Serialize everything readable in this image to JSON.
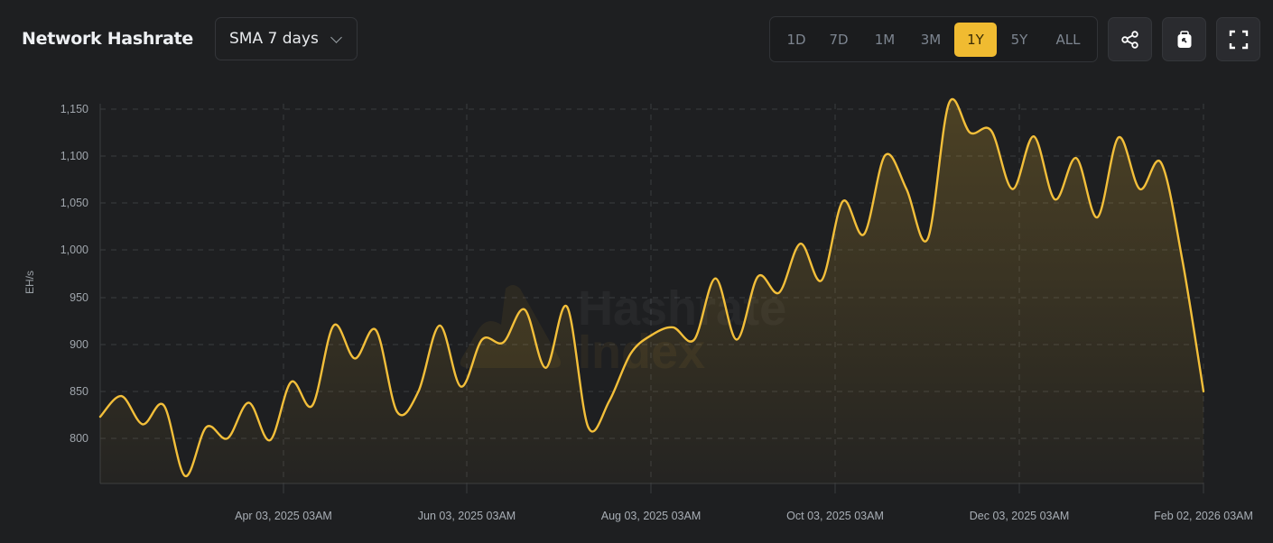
{
  "header": {
    "title": "Network Hashrate",
    "smoothing": {
      "selected": "SMA 7 days"
    },
    "ranges": [
      {
        "label": "1D",
        "active": false
      },
      {
        "label": "7D",
        "active": false
      },
      {
        "label": "1M",
        "active": false
      },
      {
        "label": "3M",
        "active": false
      },
      {
        "label": "1Y",
        "active": true
      },
      {
        "label": "5Y",
        "active": false
      },
      {
        "label": "ALL",
        "active": false
      }
    ],
    "icons": [
      "share-icon",
      "clipboard-icon",
      "fullscreen-icon"
    ]
  },
  "colors": {
    "accent": "#f0bb31",
    "line": "#f3bf3a",
    "background": "#1e1f21",
    "grid": "#3a3c40"
  },
  "watermark": {
    "line1": "Hashrate",
    "line2": "Index"
  },
  "chart_data": {
    "type": "area",
    "title": "Network Hashrate",
    "series_name": "SMA 7 days",
    "ylabel": "EH/s",
    "xlabel": "",
    "yticks": [
      "1,150",
      "1,100",
      "1,050",
      "1,000",
      "950",
      "900",
      "850",
      "800"
    ],
    "ytick_values": [
      1150,
      1100,
      1050,
      1000,
      950,
      900,
      850,
      800
    ],
    "xticks": [
      "Apr 03, 2025 03AM",
      "Jun 03, 2025 03AM",
      "Aug 03, 2025 03AM",
      "Oct 03, 2025 03AM",
      "Dec 03, 2025 03AM",
      "Feb 02, 2026 03AM"
    ],
    "ylim": [
      752,
      1160
    ],
    "grid": true,
    "x": [
      "2025-02-02",
      "2025-02-09",
      "2025-02-16",
      "2025-02-23",
      "2025-03-02",
      "2025-03-09",
      "2025-03-16",
      "2025-03-23",
      "2025-03-30",
      "2025-04-06",
      "2025-04-13",
      "2025-04-20",
      "2025-04-27",
      "2025-05-04",
      "2025-05-11",
      "2025-05-18",
      "2025-05-25",
      "2025-06-01",
      "2025-06-08",
      "2025-06-15",
      "2025-06-22",
      "2025-06-29",
      "2025-07-06",
      "2025-07-13",
      "2025-07-20",
      "2025-07-27",
      "2025-08-03",
      "2025-08-10",
      "2025-08-17",
      "2025-08-24",
      "2025-08-31",
      "2025-09-07",
      "2025-09-14",
      "2025-09-21",
      "2025-09-28",
      "2025-10-05",
      "2025-10-12",
      "2025-10-19",
      "2025-10-26",
      "2025-11-02",
      "2025-11-09",
      "2025-11-16",
      "2025-11-23",
      "2025-11-30",
      "2025-12-07",
      "2025-12-14",
      "2025-12-21",
      "2025-12-28",
      "2026-01-04",
      "2026-01-11",
      "2026-01-18",
      "2026-01-25",
      "2026-02-02"
    ],
    "values": [
      823,
      845,
      815,
      835,
      760,
      812,
      800,
      838,
      798,
      860,
      835,
      920,
      885,
      915,
      828,
      850,
      920,
      855,
      905,
      902,
      937,
      875,
      940,
      812,
      840,
      890,
      910,
      918,
      905,
      970,
      905,
      972,
      955,
      1007,
      968,
      1052,
      1017,
      1101,
      1065,
      1012,
      1156,
      1125,
      1127,
      1065,
      1121,
      1054,
      1098,
      1035,
      1120,
      1065,
      1093,
      990,
      850
    ]
  }
}
